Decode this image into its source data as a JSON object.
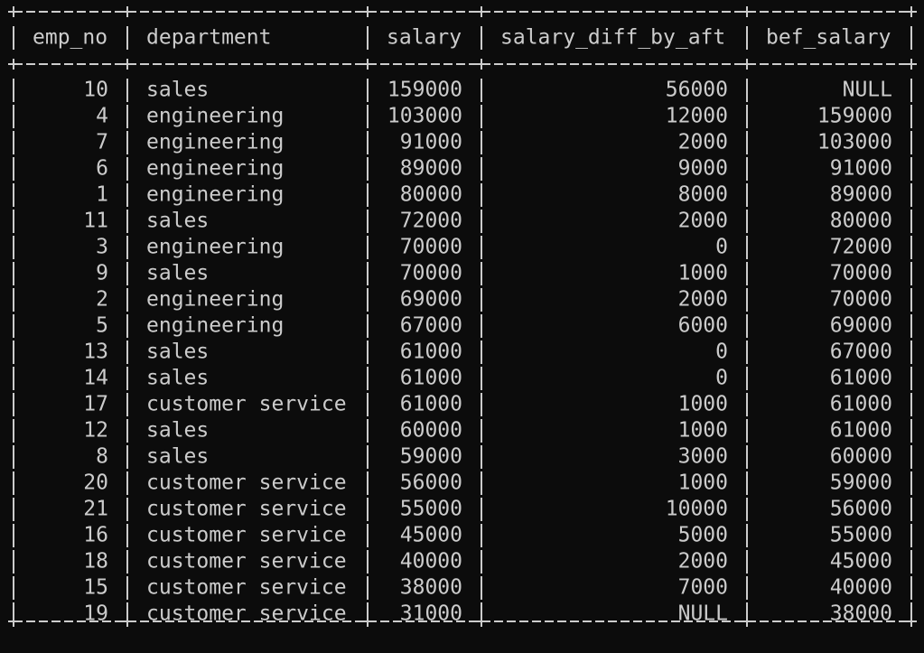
{
  "table": {
    "columns": [
      "emp_no",
      "department",
      "salary",
      "salary_diff_by_aft",
      "bef_salary"
    ],
    "rows": [
      [
        10,
        "sales",
        159000,
        56000,
        "NULL"
      ],
      [
        4,
        "engineering",
        103000,
        12000,
        159000
      ],
      [
        7,
        "engineering",
        91000,
        2000,
        103000
      ],
      [
        6,
        "engineering",
        89000,
        9000,
        91000
      ],
      [
        1,
        "engineering",
        80000,
        8000,
        89000
      ],
      [
        11,
        "sales",
        72000,
        2000,
        80000
      ],
      [
        3,
        "engineering",
        70000,
        0,
        72000
      ],
      [
        9,
        "sales",
        70000,
        1000,
        70000
      ],
      [
        2,
        "engineering",
        69000,
        2000,
        70000
      ],
      [
        5,
        "engineering",
        67000,
        6000,
        69000
      ],
      [
        13,
        "sales",
        61000,
        0,
        67000
      ],
      [
        14,
        "sales",
        61000,
        0,
        61000
      ],
      [
        17,
        "customer service",
        61000,
        1000,
        61000
      ],
      [
        12,
        "sales",
        60000,
        1000,
        61000
      ],
      [
        8,
        "sales",
        59000,
        3000,
        60000
      ],
      [
        20,
        "customer service",
        56000,
        1000,
        59000
      ],
      [
        21,
        "customer service",
        55000,
        10000,
        56000
      ],
      [
        16,
        "customer service",
        45000,
        5000,
        55000
      ],
      [
        18,
        "customer service",
        40000,
        2000,
        45000
      ],
      [
        15,
        "customer service",
        38000,
        7000,
        40000
      ],
      [
        19,
        "customer service",
        31000,
        "NULL",
        38000
      ]
    ]
  }
}
